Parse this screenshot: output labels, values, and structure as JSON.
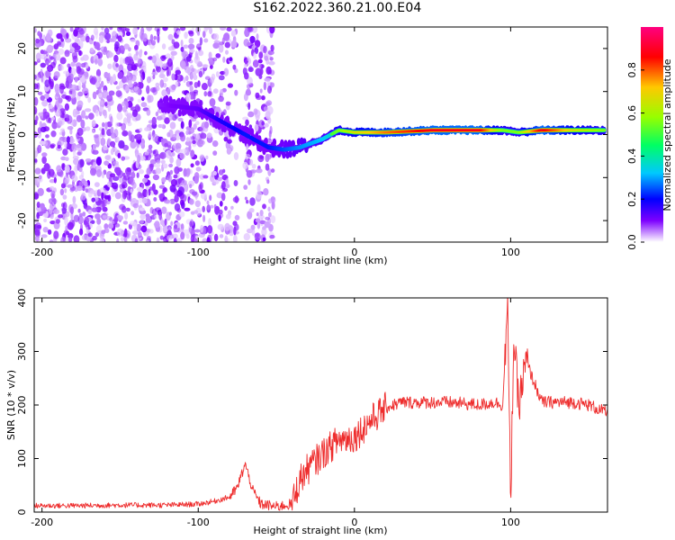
{
  "title": "S162.2022.360.21.00.E04",
  "chart_data": [
    {
      "type": "heatmap",
      "xlabel": "Height of straight line (km)",
      "ylabel": "Frequency (Hz)",
      "xlim": [
        -205,
        162
      ],
      "ylim": [
        -25,
        25
      ],
      "x_ticks": [
        -200,
        -100,
        0,
        100
      ],
      "y_ticks": [
        -20,
        -10,
        0,
        10,
        20
      ],
      "colorbar": {
        "label": "Normalized spectral amplitude",
        "range": [
          0,
          1
        ],
        "ticks": [
          "0.0",
          "0.2",
          "0.4",
          "0.6",
          "0.8"
        ],
        "colors": [
          "#ffffff",
          "#7d00ff",
          "#0000ff",
          "#00c8ff",
          "#00ff64",
          "#96ff00",
          "#ffc800",
          "#ff0000",
          "#ff0080"
        ]
      },
      "ridge": [
        {
          "x": -125,
          "y": 7,
          "amp": 0.15
        },
        {
          "x": -100,
          "y": 6,
          "amp": 0.2
        },
        {
          "x": -85,
          "y": 3,
          "amp": 0.3
        },
        {
          "x": -70,
          "y": 0,
          "amp": 0.35
        },
        {
          "x": -55,
          "y": -3,
          "amp": 0.35
        },
        {
          "x": -45,
          "y": -3.5,
          "amp": 0.4
        },
        {
          "x": -35,
          "y": -3,
          "amp": 0.45
        },
        {
          "x": -20,
          "y": -1,
          "amp": 0.5
        },
        {
          "x": -10,
          "y": 1,
          "amp": 0.6
        },
        {
          "x": 0,
          "y": 0.5,
          "amp": 0.7
        },
        {
          "x": 20,
          "y": 0.5,
          "amp": 0.8
        },
        {
          "x": 50,
          "y": 1,
          "amp": 0.9
        },
        {
          "x": 80,
          "y": 1,
          "amp": 0.9
        },
        {
          "x": 95,
          "y": 1,
          "amp": 0.6
        },
        {
          "x": 105,
          "y": 0.5,
          "amp": 0.6
        },
        {
          "x": 120,
          "y": 1,
          "amp": 0.9
        },
        {
          "x": 140,
          "y": 1,
          "amp": 0.7
        },
        {
          "x": 160,
          "y": 1,
          "amp": 0.6
        }
      ]
    },
    {
      "type": "line",
      "xlabel": "Height of straight line (km)",
      "ylabel": "SNR (10 * v/v)",
      "xlim": [
        -205,
        162
      ],
      "ylim": [
        0,
        400
      ],
      "x_ticks": [
        -200,
        -100,
        0,
        100
      ],
      "y_ticks": [
        0,
        100,
        200,
        300,
        400
      ],
      "color": "#ee2c2c",
      "x": [
        -205,
        -180,
        -150,
        -120,
        -100,
        -90,
        -80,
        -75,
        -70,
        -65,
        -60,
        -50,
        -40,
        -35,
        -30,
        -20,
        -10,
        0,
        10,
        20,
        30,
        40,
        60,
        80,
        90,
        95,
        98,
        100,
        102,
        105,
        110,
        120,
        140,
        150,
        162
      ],
      "y": [
        12,
        12,
        13,
        13,
        15,
        20,
        28,
        45,
        90,
        40,
        15,
        10,
        15,
        60,
        80,
        110,
        135,
        140,
        170,
        195,
        205,
        205,
        205,
        200,
        205,
        200,
        390,
        15,
        330,
        200,
        280,
        205,
        205,
        200,
        185
      ]
    }
  ]
}
